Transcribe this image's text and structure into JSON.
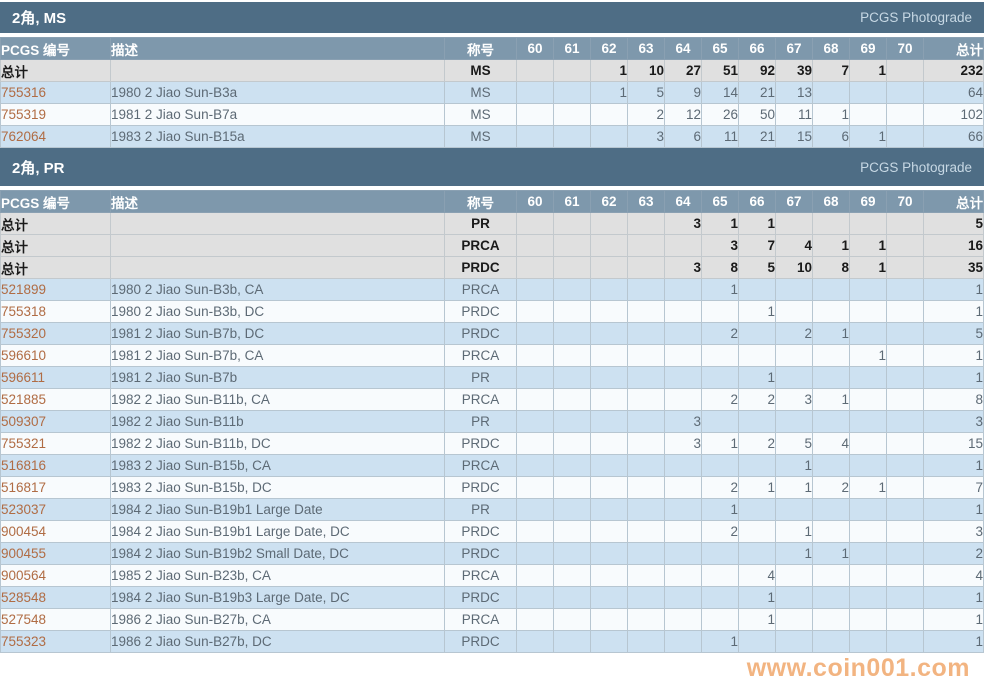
{
  "watermark": "www.coin001.com",
  "table_header": {
    "pcgs_number": "PCGS 编号",
    "description": "描述",
    "designation": "称号",
    "grades": [
      "60",
      "61",
      "62",
      "63",
      "64",
      "65",
      "66",
      "67",
      "68",
      "69",
      "70"
    ],
    "total": "总计"
  },
  "colors": {
    "title_bar": "#4e6d85",
    "column_header": "#7e98ac",
    "total_row": "#e0e0e0",
    "row_blue": "#cde1f1",
    "row_white": "#f8fbfd",
    "pcgs_link": "#b06c44",
    "watermark": "#ef9f5e"
  },
  "sections": [
    {
      "title": "2角, MS",
      "photograde_label": "PCGS Photograde",
      "rows": [
        {
          "type": "total",
          "pcgs": "总计",
          "desc": "",
          "designation": "MS",
          "grades": [
            "",
            "",
            "1",
            "10",
            "27",
            "51",
            "92",
            "39",
            "7",
            "1",
            ""
          ],
          "total": "232"
        },
        {
          "type": "data",
          "pcgs": "755316",
          "desc": "1980 2 Jiao Sun-B3a",
          "designation": "MS",
          "grades": [
            "",
            "",
            "1",
            "5",
            "9",
            "14",
            "21",
            "13",
            "",
            "",
            ""
          ],
          "total": "64"
        },
        {
          "type": "data",
          "pcgs": "755319",
          "desc": "1981 2 Jiao Sun-B7a",
          "designation": "MS",
          "grades": [
            "",
            "",
            "",
            "2",
            "12",
            "26",
            "50",
            "11",
            "1",
            "",
            ""
          ],
          "total": "102"
        },
        {
          "type": "data",
          "pcgs": "762064",
          "desc": "1983 2 Jiao Sun-B15a",
          "designation": "MS",
          "grades": [
            "",
            "",
            "",
            "3",
            "6",
            "11",
            "21",
            "15",
            "6",
            "1",
            ""
          ],
          "total": "66"
        }
      ]
    },
    {
      "title": "2角, PR",
      "photograde_label": "PCGS Photograde",
      "rows": [
        {
          "type": "total",
          "pcgs": "总计",
          "desc": "",
          "designation": "PR",
          "grades": [
            "",
            "",
            "",
            "",
            "3",
            "1",
            "1",
            "",
            "",
            "",
            ""
          ],
          "total": "5"
        },
        {
          "type": "total",
          "pcgs": "总计",
          "desc": "",
          "designation": "PRCA",
          "grades": [
            "",
            "",
            "",
            "",
            "",
            "3",
            "7",
            "4",
            "1",
            "1",
            ""
          ],
          "total": "16"
        },
        {
          "type": "total",
          "pcgs": "总计",
          "desc": "",
          "designation": "PRDC",
          "grades": [
            "",
            "",
            "",
            "",
            "3",
            "8",
            "5",
            "10",
            "8",
            "1",
            ""
          ],
          "total": "35"
        },
        {
          "type": "data",
          "pcgs": "521899",
          "desc": "1980 2 Jiao Sun-B3b, CA",
          "designation": "PRCA",
          "grades": [
            "",
            "",
            "",
            "",
            "",
            "1",
            "",
            "",
            "",
            "",
            ""
          ],
          "total": "1"
        },
        {
          "type": "data",
          "pcgs": "755318",
          "desc": "1980 2 Jiao Sun-B3b, DC",
          "designation": "PRDC",
          "grades": [
            "",
            "",
            "",
            "",
            "",
            "",
            "1",
            "",
            "",
            "",
            ""
          ],
          "total": "1"
        },
        {
          "type": "data",
          "pcgs": "755320",
          "desc": "1981 2 Jiao Sun-B7b, DC",
          "designation": "PRDC",
          "grades": [
            "",
            "",
            "",
            "",
            "",
            "2",
            "",
            "2",
            "1",
            "",
            ""
          ],
          "total": "5"
        },
        {
          "type": "data",
          "pcgs": "596610",
          "desc": "1981 2 Jiao Sun-B7b, CA",
          "designation": "PRCA",
          "grades": [
            "",
            "",
            "",
            "",
            "",
            "",
            "",
            "",
            "",
            "1",
            ""
          ],
          "total": "1"
        },
        {
          "type": "data",
          "pcgs": "596611",
          "desc": "1981 2 Jiao Sun-B7b",
          "designation": "PR",
          "grades": [
            "",
            "",
            "",
            "",
            "",
            "",
            "1",
            "",
            "",
            "",
            ""
          ],
          "total": "1"
        },
        {
          "type": "data",
          "pcgs": "521885",
          "desc": "1982 2 Jiao Sun-B11b, CA",
          "designation": "PRCA",
          "grades": [
            "",
            "",
            "",
            "",
            "",
            "2",
            "2",
            "3",
            "1",
            "",
            ""
          ],
          "total": "8"
        },
        {
          "type": "data",
          "pcgs": "509307",
          "desc": "1982 2 Jiao Sun-B11b",
          "designation": "PR",
          "grades": [
            "",
            "",
            "",
            "",
            "3",
            "",
            "",
            "",
            "",
            "",
            ""
          ],
          "total": "3"
        },
        {
          "type": "data",
          "pcgs": "755321",
          "desc": "1982 2 Jiao Sun-B11b, DC",
          "designation": "PRDC",
          "grades": [
            "",
            "",
            "",
            "",
            "3",
            "1",
            "2",
            "5",
            "4",
            "",
            ""
          ],
          "total": "15"
        },
        {
          "type": "data",
          "pcgs": "516816",
          "desc": "1983 2 Jiao Sun-B15b, CA",
          "designation": "PRCA",
          "grades": [
            "",
            "",
            "",
            "",
            "",
            "",
            "",
            "1",
            "",
            "",
            ""
          ],
          "total": "1"
        },
        {
          "type": "data",
          "pcgs": "516817",
          "desc": "1983 2 Jiao Sun-B15b, DC",
          "designation": "PRDC",
          "grades": [
            "",
            "",
            "",
            "",
            "",
            "2",
            "1",
            "1",
            "2",
            "1",
            ""
          ],
          "total": "7"
        },
        {
          "type": "data",
          "pcgs": "523037",
          "desc": "1984 2 Jiao Sun-B19b1 Large Date",
          "designation": "PR",
          "grades": [
            "",
            "",
            "",
            "",
            "",
            "1",
            "",
            "",
            "",
            "",
            ""
          ],
          "total": "1"
        },
        {
          "type": "data",
          "pcgs": "900454",
          "desc": "1984 2 Jiao Sun-B19b1 Large Date, DC",
          "designation": "PRDC",
          "grades": [
            "",
            "",
            "",
            "",
            "",
            "2",
            "",
            "1",
            "",
            "",
            ""
          ],
          "total": "3"
        },
        {
          "type": "data",
          "pcgs": "900455",
          "desc": "1984 2 Jiao Sun-B19b2 Small Date, DC",
          "designation": "PRDC",
          "grades": [
            "",
            "",
            "",
            "",
            "",
            "",
            "",
            "1",
            "1",
            "",
            ""
          ],
          "total": "2"
        },
        {
          "type": "data",
          "pcgs": "900564",
          "desc": "1985 2 Jiao Sun-B23b, CA",
          "designation": "PRCA",
          "grades": [
            "",
            "",
            "",
            "",
            "",
            "",
            "4",
            "",
            "",
            "",
            ""
          ],
          "total": "4"
        },
        {
          "type": "data",
          "pcgs": "528548",
          "desc": "1984 2 Jiao Sun-B19b3 Large Date, DC",
          "designation": "PRDC",
          "grades": [
            "",
            "",
            "",
            "",
            "",
            "",
            "1",
            "",
            "",
            "",
            ""
          ],
          "total": "1"
        },
        {
          "type": "data",
          "pcgs": "527548",
          "desc": "1986 2 Jiao Sun-B27b, CA",
          "designation": "PRCA",
          "grades": [
            "",
            "",
            "",
            "",
            "",
            "",
            "1",
            "",
            "",
            "",
            ""
          ],
          "total": "1"
        },
        {
          "type": "data",
          "pcgs": "755323",
          "desc": "1986 2 Jiao Sun-B27b, DC",
          "designation": "PRDC",
          "grades": [
            "",
            "",
            "",
            "",
            "",
            "1",
            "",
            "",
            "",
            "",
            ""
          ],
          "total": "1"
        }
      ]
    }
  ]
}
